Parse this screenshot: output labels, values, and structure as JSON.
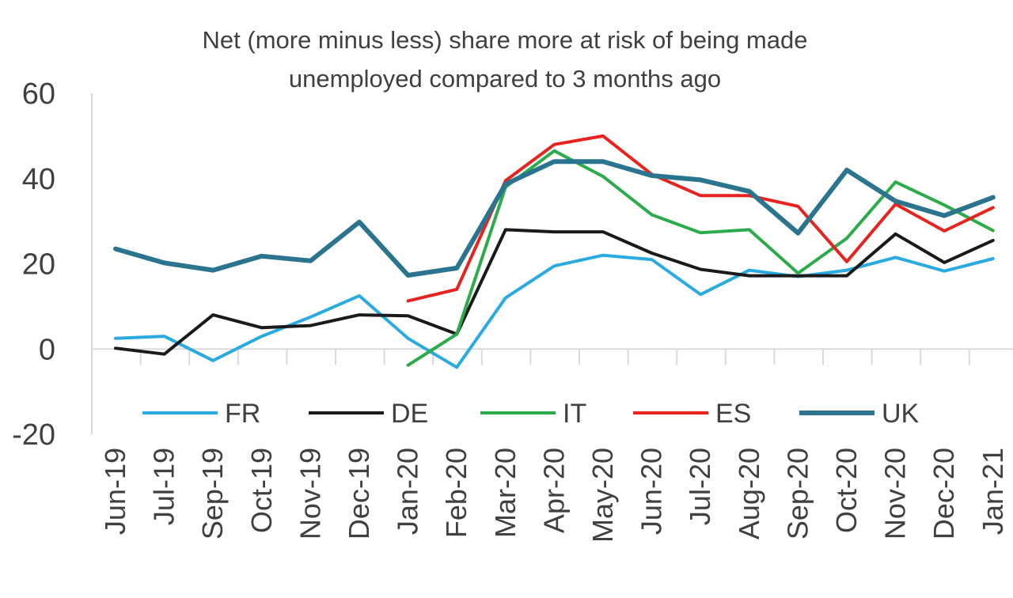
{
  "chart_data": {
    "type": "line",
    "title": "Net (more minus less) share more at risk of being made",
    "subtitle": "unemployed compared to 3 months ago",
    "xlabel": "",
    "ylabel": "",
    "ylim": [
      -20,
      60
    ],
    "yticks": [
      -20,
      0,
      20,
      40,
      60
    ],
    "grid": false,
    "legend_position": "bottom-inside",
    "categories": [
      "Jun-19",
      "Jul-19",
      "Sep-19",
      "Oct-19",
      "Nov-19",
      "Dec-19",
      "Jan-20",
      "Feb-20",
      "Mar-20",
      "Apr-20",
      "May-20",
      "Jun-20",
      "Jul-20",
      "Aug-20",
      "Sep-20",
      "Oct-20",
      "Nov-20",
      "Dec-20",
      "Jan-21"
    ],
    "series": [
      {
        "name": "FR",
        "color": "#29abe2",
        "width": 4,
        "values": [
          2.5,
          3,
          -2.7,
          3,
          7.5,
          12.5,
          2.5,
          -4.3,
          12,
          19.5,
          22,
          21,
          12.8,
          18.5,
          17,
          18.5,
          21.5,
          18.3,
          21.2
        ]
      },
      {
        "name": "DE",
        "color": "#1a1a1a",
        "width": 4,
        "values": [
          0.2,
          -1.2,
          8,
          5,
          5.5,
          8,
          7.8,
          3.5,
          28,
          27.5,
          27.5,
          22.5,
          18.7,
          17.2,
          17.2,
          17.2,
          27,
          20.3,
          25.5
        ]
      },
      {
        "name": "IT",
        "color": "#2bab4a",
        "width": 4,
        "values": [
          null,
          null,
          null,
          null,
          null,
          null,
          -3.8,
          3.5,
          38,
          46.5,
          40.5,
          31.5,
          27.3,
          28,
          17.8,
          26,
          39.2,
          33.8,
          27.8
        ]
      },
      {
        "name": "ES",
        "color": "#e8231e",
        "width": 4,
        "values": [
          null,
          null,
          null,
          null,
          null,
          null,
          11.3,
          14,
          39.5,
          48,
          50,
          41,
          36,
          36,
          33.5,
          20.5,
          34,
          27.7,
          33.2
        ]
      },
      {
        "name": "UK",
        "color": "#2a7490",
        "width": 6,
        "values": [
          23.5,
          20.2,
          18.5,
          21.8,
          20.7,
          29.8,
          17.3,
          19,
          38.7,
          44,
          44,
          40.7,
          39.7,
          37,
          27.2,
          42,
          34.7,
          31.3,
          35.6
        ]
      }
    ]
  }
}
